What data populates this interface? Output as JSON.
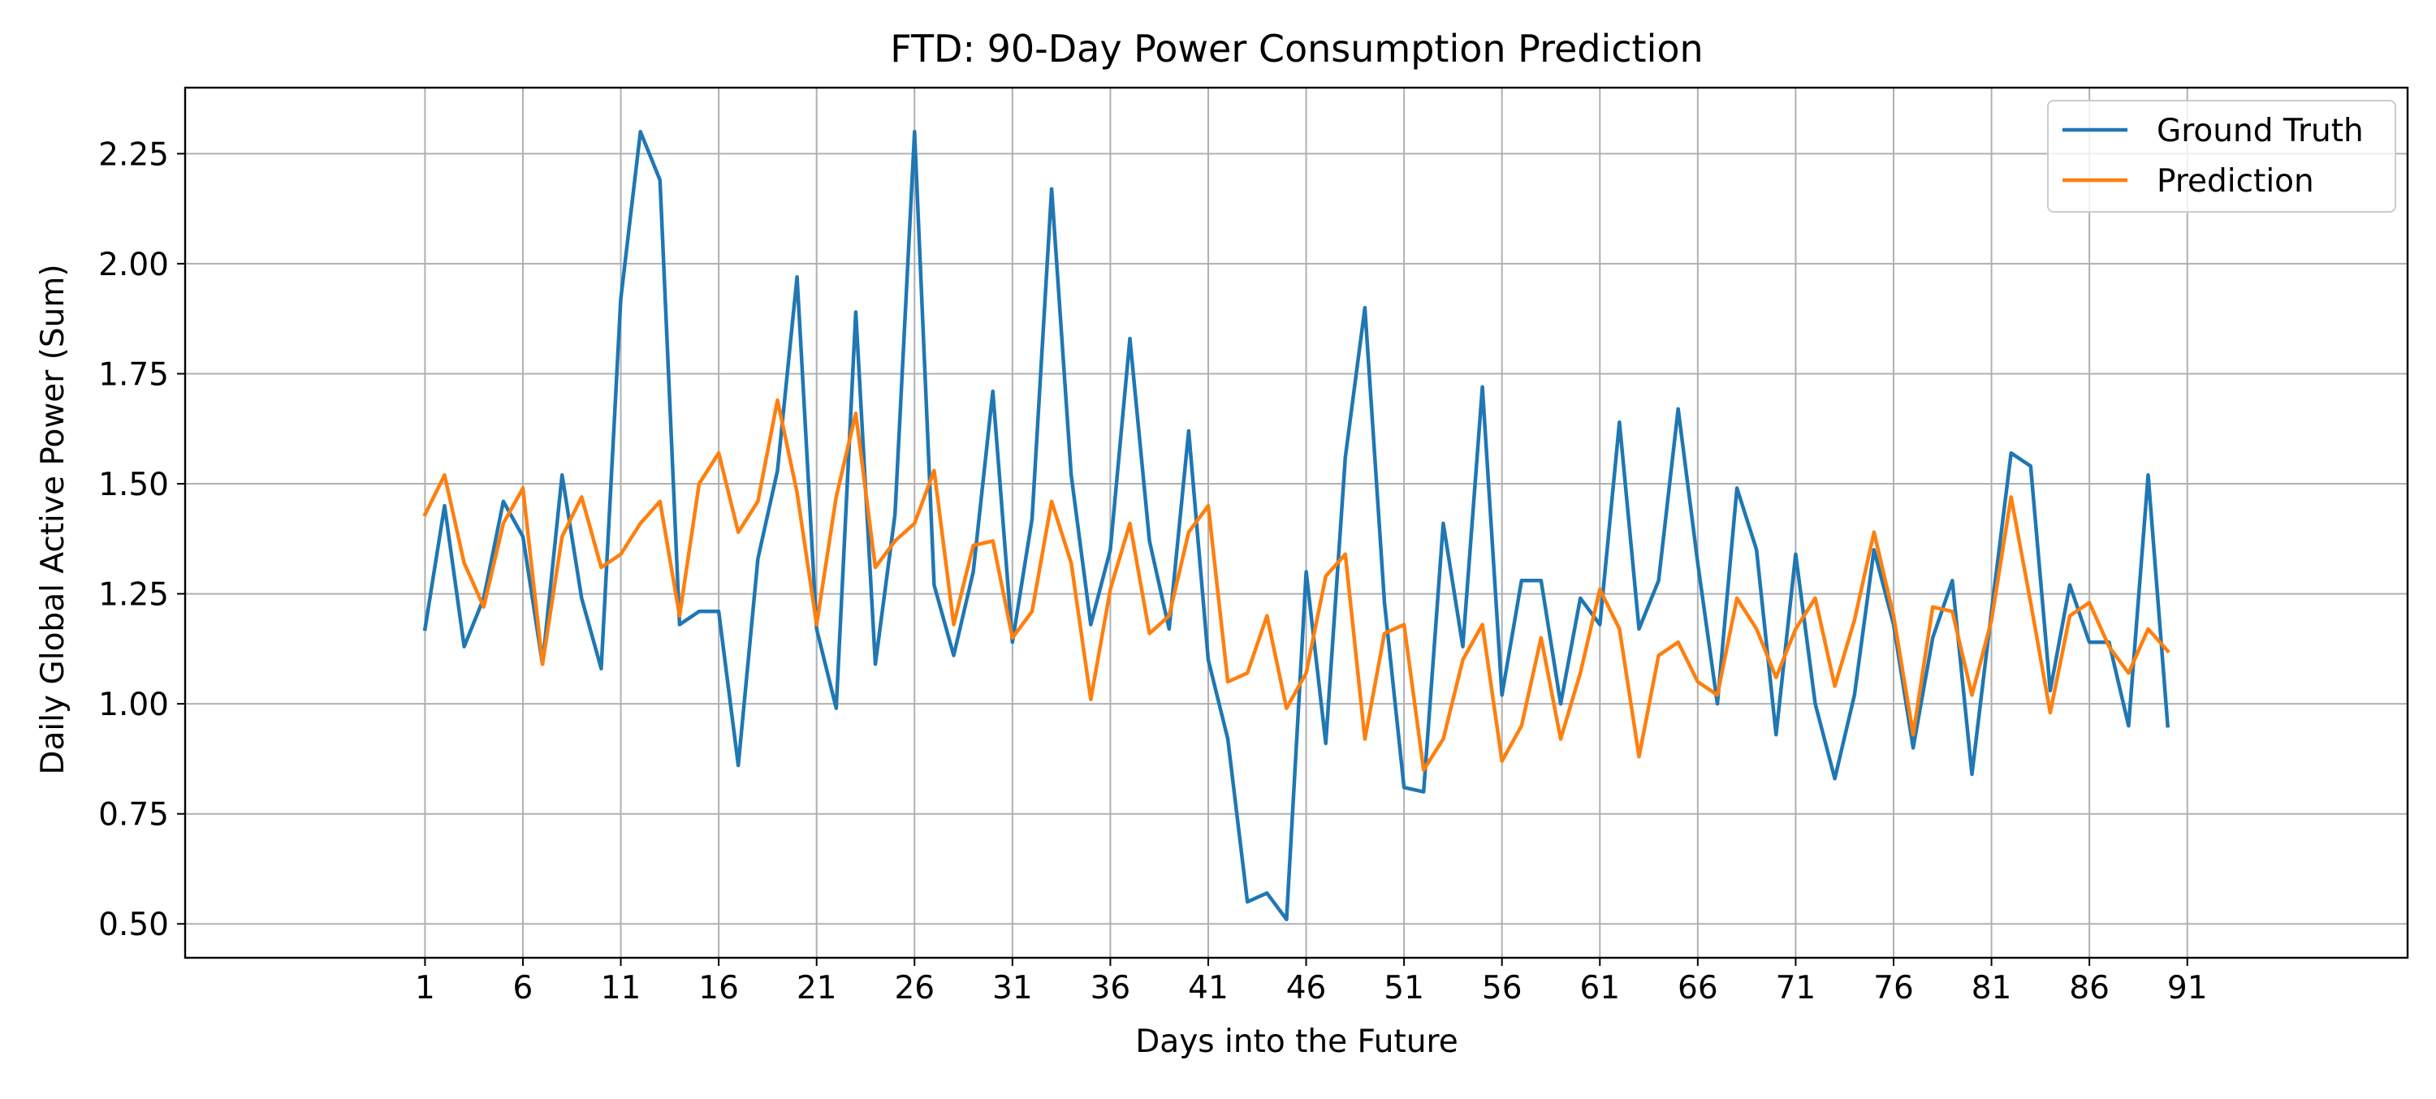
{
  "chart_data": {
    "type": "line",
    "title": "FTD: 90-Day Power Consumption Prediction",
    "xlabel": "Days into the Future",
    "ylabel": "Daily Global Active Power (Sum)",
    "xlim": [
      -11.25,
      102.25
    ],
    "ylim": [
      0.423,
      2.4
    ],
    "xticks": [
      1,
      6,
      11,
      16,
      21,
      26,
      31,
      36,
      41,
      46,
      51,
      56,
      61,
      66,
      71,
      76,
      81,
      86,
      91
    ],
    "yticks": [
      0.5,
      0.75,
      1.0,
      1.25,
      1.5,
      1.75,
      2.0,
      2.25
    ],
    "ytick_labels": [
      "0.50",
      "0.75",
      "1.00",
      "1.25",
      "1.50",
      "1.75",
      "2.00",
      "2.25"
    ],
    "grid": true,
    "legend_position": "top-right",
    "x": [
      1,
      2,
      3,
      4,
      5,
      6,
      7,
      8,
      9,
      10,
      11,
      12,
      13,
      14,
      15,
      16,
      17,
      18,
      19,
      20,
      21,
      22,
      23,
      24,
      25,
      26,
      27,
      28,
      29,
      30,
      31,
      32,
      33,
      34,
      35,
      36,
      37,
      38,
      39,
      40,
      41,
      42,
      43,
      44,
      45,
      46,
      47,
      48,
      49,
      50,
      51,
      52,
      53,
      54,
      55,
      56,
      57,
      58,
      59,
      60,
      61,
      62,
      63,
      64,
      65,
      66,
      67,
      68,
      69,
      70,
      71,
      72,
      73,
      74,
      75,
      76,
      77,
      78,
      79,
      80,
      81,
      82,
      83,
      84,
      85,
      86,
      87,
      88,
      89,
      90
    ],
    "series": [
      {
        "name": "Ground Truth",
        "color": "#1f77b4",
        "values": [
          1.17,
          1.45,
          1.13,
          1.24,
          1.46,
          1.38,
          1.09,
          1.52,
          1.24,
          1.08,
          1.92,
          2.3,
          2.19,
          1.18,
          1.21,
          1.21,
          0.86,
          1.33,
          1.53,
          1.97,
          1.17,
          0.99,
          1.89,
          1.09,
          1.43,
          2.3,
          1.27,
          1.11,
          1.3,
          1.71,
          1.14,
          1.42,
          2.17,
          1.52,
          1.18,
          1.35,
          1.83,
          1.37,
          1.17,
          1.62,
          1.1,
          0.92,
          0.55,
          0.57,
          0.51,
          1.3,
          0.91,
          1.56,
          1.9,
          1.23,
          0.81,
          0.8,
          1.41,
          1.13,
          1.72,
          1.02,
          1.28,
          1.28,
          1.0,
          1.24,
          1.18,
          1.64,
          1.17,
          1.28,
          1.67,
          1.32,
          1.0,
          1.49,
          1.35,
          0.93,
          1.34,
          1.0,
          0.83,
          1.02,
          1.35,
          1.18,
          0.9,
          1.15,
          1.28,
          0.84,
          1.21,
          1.57,
          1.54,
          1.03,
          1.27,
          1.14,
          1.14,
          0.95,
          1.52,
          0.95
        ]
      },
      {
        "name": "Prediction",
        "color": "#ff7f0e",
        "values": [
          1.43,
          1.52,
          1.32,
          1.22,
          1.41,
          1.49,
          1.09,
          1.38,
          1.47,
          1.31,
          1.34,
          1.41,
          1.46,
          1.2,
          1.5,
          1.57,
          1.39,
          1.46,
          1.69,
          1.48,
          1.18,
          1.47,
          1.66,
          1.31,
          1.37,
          1.41,
          1.53,
          1.18,
          1.36,
          1.37,
          1.15,
          1.21,
          1.46,
          1.32,
          1.01,
          1.26,
          1.41,
          1.16,
          1.2,
          1.39,
          1.45,
          1.05,
          1.07,
          1.2,
          0.99,
          1.07,
          1.29,
          1.34,
          0.92,
          1.16,
          1.18,
          0.85,
          0.92,
          1.1,
          1.18,
          0.87,
          0.95,
          1.15,
          0.92,
          1.07,
          1.26,
          1.17,
          0.88,
          1.11,
          1.14,
          1.05,
          1.02,
          1.24,
          1.17,
          1.06,
          1.17,
          1.24,
          1.04,
          1.19,
          1.39,
          1.2,
          0.93,
          1.22,
          1.21,
          1.02,
          1.19,
          1.47,
          1.23,
          0.98,
          1.2,
          1.23,
          1.13,
          1.07,
          1.17,
          1.12
        ]
      }
    ]
  }
}
